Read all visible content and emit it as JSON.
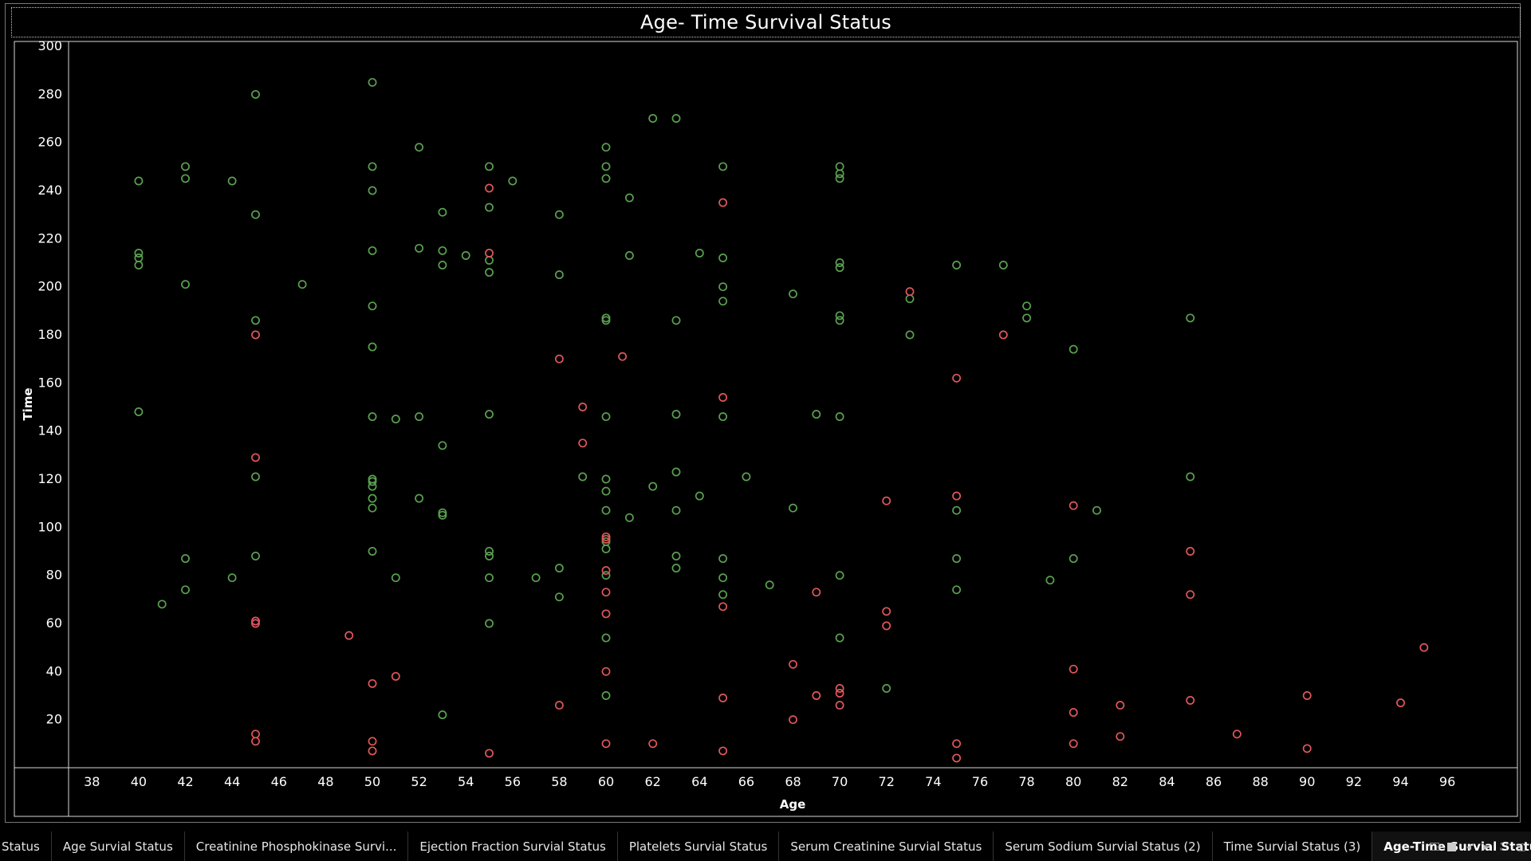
{
  "chart_data": {
    "type": "scatter",
    "title": "Age- Time  Survival Status",
    "xlabel": "Age",
    "ylabel": "Time",
    "xlim": [
      37,
      99
    ],
    "ylim": [
      0,
      302
    ],
    "x_ticks": [
      38,
      40,
      42,
      44,
      46,
      48,
      50,
      52,
      54,
      56,
      58,
      60,
      62,
      64,
      66,
      68,
      70,
      72,
      74,
      76,
      78,
      80,
      82,
      84,
      86,
      88,
      90,
      92,
      94,
      96
    ],
    "y_ticks": [
      20,
      40,
      60,
      80,
      100,
      120,
      140,
      160,
      180,
      200,
      220,
      240,
      260,
      280,
      300
    ],
    "grid": false,
    "marker": "hollow circle",
    "series": [
      {
        "color": "#59a14f",
        "points": [
          [
            40,
            244
          ],
          [
            40,
            214
          ],
          [
            40,
            212
          ],
          [
            40,
            209
          ],
          [
            40,
            148
          ],
          [
            41,
            68
          ],
          [
            42,
            250
          ],
          [
            42,
            245
          ],
          [
            42,
            201
          ],
          [
            42,
            87
          ],
          [
            42,
            74
          ],
          [
            44,
            244
          ],
          [
            44,
            79
          ],
          [
            45,
            280
          ],
          [
            45,
            230
          ],
          [
            45,
            186
          ],
          [
            45,
            121
          ],
          [
            45,
            88
          ],
          [
            47,
            201
          ],
          [
            50,
            285
          ],
          [
            50,
            250
          ],
          [
            50,
            240
          ],
          [
            50,
            215
          ],
          [
            50,
            192
          ],
          [
            50,
            175
          ],
          [
            50,
            146
          ],
          [
            50,
            120
          ],
          [
            50,
            119
          ],
          [
            50,
            117
          ],
          [
            50,
            112
          ],
          [
            50,
            108
          ],
          [
            50,
            90
          ],
          [
            51,
            145
          ],
          [
            51,
            79
          ],
          [
            52,
            258
          ],
          [
            52,
            216
          ],
          [
            52,
            146
          ],
          [
            52,
            112
          ],
          [
            53,
            231
          ],
          [
            53,
            215
          ],
          [
            53,
            209
          ],
          [
            53,
            134
          ],
          [
            53,
            106
          ],
          [
            53,
            105
          ],
          [
            53,
            22
          ],
          [
            54,
            213
          ],
          [
            55,
            250
          ],
          [
            55,
            233
          ],
          [
            55,
            211
          ],
          [
            55,
            206
          ],
          [
            55,
            147
          ],
          [
            55,
            90
          ],
          [
            55,
            88
          ],
          [
            55,
            79
          ],
          [
            55,
            60
          ],
          [
            56,
            244
          ],
          [
            57,
            79
          ],
          [
            58,
            230
          ],
          [
            58,
            205
          ],
          [
            58,
            83
          ],
          [
            58,
            71
          ],
          [
            59,
            121
          ],
          [
            60,
            258
          ],
          [
            60,
            250
          ],
          [
            60,
            245
          ],
          [
            60,
            187
          ],
          [
            60,
            186
          ],
          [
            60,
            146
          ],
          [
            60,
            120
          ],
          [
            60,
            115
          ],
          [
            60,
            107
          ],
          [
            60,
            94
          ],
          [
            60,
            91
          ],
          [
            60,
            80
          ],
          [
            60,
            54
          ],
          [
            60,
            30
          ],
          [
            61,
            237
          ],
          [
            61,
            213
          ],
          [
            61,
            104
          ],
          [
            62,
            270
          ],
          [
            62,
            117
          ],
          [
            63,
            270
          ],
          [
            63,
            186
          ],
          [
            63,
            147
          ],
          [
            63,
            123
          ],
          [
            63,
            107
          ],
          [
            63,
            88
          ],
          [
            63,
            83
          ],
          [
            64,
            214
          ],
          [
            64,
            113
          ],
          [
            65,
            250
          ],
          [
            65,
            212
          ],
          [
            65,
            200
          ],
          [
            65,
            194
          ],
          [
            65,
            146
          ],
          [
            65,
            87
          ],
          [
            65,
            79
          ],
          [
            65,
            72
          ],
          [
            66,
            121
          ],
          [
            67,
            76
          ],
          [
            68,
            197
          ],
          [
            68,
            108
          ],
          [
            69,
            147
          ],
          [
            70,
            250
          ],
          [
            70,
            247
          ],
          [
            70,
            245
          ],
          [
            70,
            210
          ],
          [
            70,
            208
          ],
          [
            70,
            188
          ],
          [
            70,
            186
          ],
          [
            70,
            146
          ],
          [
            70,
            80
          ],
          [
            70,
            54
          ],
          [
            72,
            33
          ],
          [
            73,
            195
          ],
          [
            73,
            180
          ],
          [
            75,
            209
          ],
          [
            75,
            107
          ],
          [
            75,
            87
          ],
          [
            75,
            74
          ],
          [
            77,
            209
          ],
          [
            78,
            192
          ],
          [
            78,
            187
          ],
          [
            79,
            78
          ],
          [
            80,
            174
          ],
          [
            80,
            87
          ],
          [
            81,
            107
          ],
          [
            85,
            187
          ],
          [
            85,
            121
          ]
        ]
      },
      {
        "color": "#e15759",
        "points": [
          [
            45,
            180
          ],
          [
            45,
            129
          ],
          [
            45,
            61
          ],
          [
            45,
            60
          ],
          [
            45,
            14
          ],
          [
            45,
            11
          ],
          [
            49,
            55
          ],
          [
            50,
            35
          ],
          [
            50,
            11
          ],
          [
            50,
            7
          ],
          [
            51,
            38
          ],
          [
            55,
            241
          ],
          [
            55,
            214
          ],
          [
            55,
            6
          ],
          [
            58,
            170
          ],
          [
            58,
            26
          ],
          [
            59,
            150
          ],
          [
            59,
            135
          ],
          [
            60,
            96
          ],
          [
            60,
            95
          ],
          [
            60,
            82
          ],
          [
            60,
            73
          ],
          [
            60,
            64
          ],
          [
            60,
            40
          ],
          [
            60,
            10
          ],
          [
            60.7,
            171
          ],
          [
            62,
            10
          ],
          [
            65,
            235
          ],
          [
            65,
            154
          ],
          [
            65,
            67
          ],
          [
            65,
            29
          ],
          [
            65,
            7
          ],
          [
            68,
            43
          ],
          [
            68,
            20
          ],
          [
            69,
            73
          ],
          [
            69,
            30
          ],
          [
            70,
            33
          ],
          [
            70,
            31
          ],
          [
            70,
            26
          ],
          [
            72,
            111
          ],
          [
            72,
            65
          ],
          [
            72,
            59
          ],
          [
            73,
            198
          ],
          [
            75,
            162
          ],
          [
            75,
            113
          ],
          [
            75,
            10
          ],
          [
            75,
            4
          ],
          [
            77,
            180
          ],
          [
            80,
            109
          ],
          [
            80,
            41
          ],
          [
            80,
            23
          ],
          [
            80,
            10
          ],
          [
            82,
            26
          ],
          [
            82,
            13
          ],
          [
            85,
            90
          ],
          [
            85,
            72
          ],
          [
            85,
            28
          ],
          [
            87,
            14
          ],
          [
            90,
            30
          ],
          [
            90,
            8
          ],
          [
            94,
            27
          ],
          [
            95,
            50
          ]
        ]
      }
    ]
  },
  "tabs": [
    {
      "label": "Status",
      "active": false
    },
    {
      "label": "Age Survial Status",
      "active": false
    },
    {
      "label": "Creatinine Phosphokinase Survi...",
      "active": false
    },
    {
      "label": "Ejection Fraction Survial Status",
      "active": false
    },
    {
      "label": "Platelets Survial Status",
      "active": false
    },
    {
      "label": "Serum Creatinine  Survial Status",
      "active": false
    },
    {
      "label": "Serum Sodium  Survial Status (2)",
      "active": false
    },
    {
      "label": "Time  Survial Status (3)",
      "active": false
    },
    {
      "label": "Age-Time  Survial Status",
      "active": true
    }
  ],
  "controls": {
    "prev_icon": "chevron-left-icon",
    "next_icon": "chevron-right-icon",
    "fullscreen_icon": "fullscreen-icon"
  }
}
